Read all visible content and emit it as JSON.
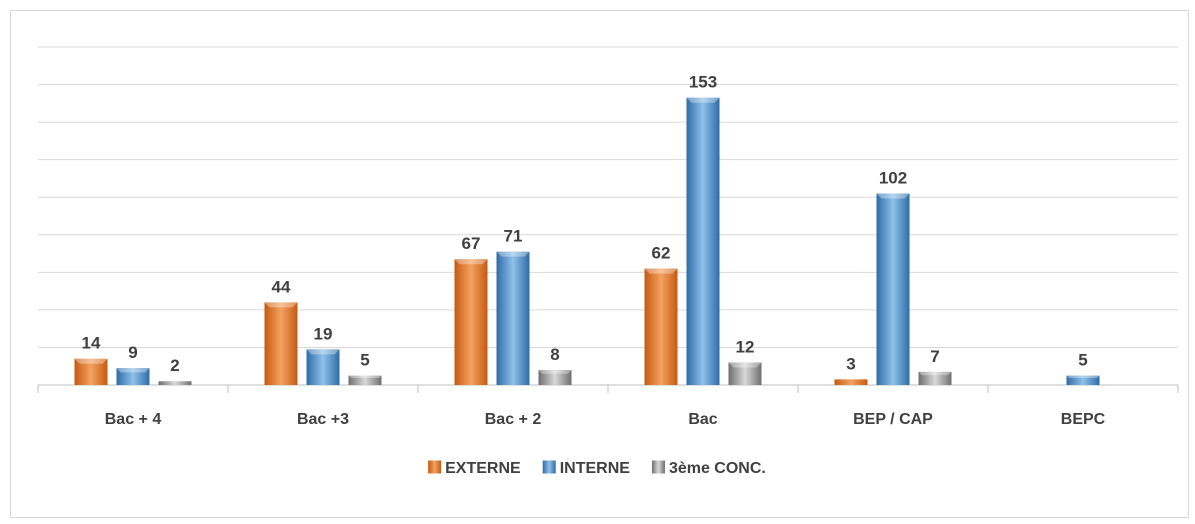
{
  "chart_data": {
    "type": "bar",
    "categories": [
      "Bac + 4",
      "Bac +3",
      "Bac + 2",
      "Bac",
      "BEP / CAP",
      "BEPC"
    ],
    "series": [
      {
        "name": "EXTERNE",
        "values": [
          14,
          44,
          67,
          62,
          3,
          null
        ]
      },
      {
        "name": "INTERNE",
        "values": [
          9,
          19,
          71,
          153,
          102,
          5
        ]
      },
      {
        "name": "3ème CONC.",
        "values": [
          2,
          5,
          8,
          12,
          7,
          null
        ]
      }
    ],
    "ylim": [
      0,
      180
    ],
    "y_gridlines": true,
    "legend_position": "bottom",
    "colors": {
      "EXTERNE": "#ed7d31",
      "INTERNE": "#5b9bd5",
      "3ème CONC.": "#a5a5a5"
    }
  }
}
